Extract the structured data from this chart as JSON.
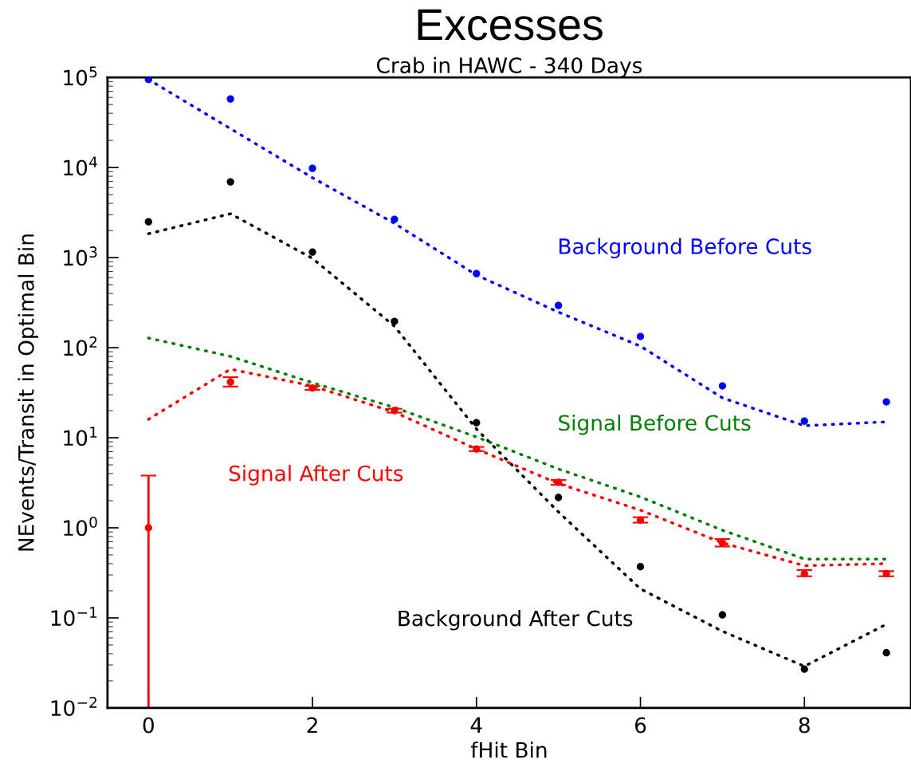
{
  "chart_data": {
    "type": "scatter",
    "title": "Excesses",
    "subtitle": "Crab in HAWC - 340 Days",
    "xlabel": "fHit Bin",
    "ylabel": "NEvents/Transit in Optimal Bin",
    "log": "y",
    "grid": false,
    "legend": false,
    "x": [
      0,
      1,
      2,
      3,
      4,
      5,
      6,
      7,
      8,
      9
    ],
    "xlim": [
      -0.5,
      9.3
    ],
    "xticks": [
      0,
      2,
      4,
      6,
      8
    ],
    "ylim": [
      0.01,
      100000
    ],
    "yticks": [
      {
        "value": 0.01,
        "label": "10$^{−2}$"
      },
      {
        "value": 0.1,
        "label": "10$^{−1}$"
      },
      {
        "value": 1,
        "label": "10$^{0}$"
      },
      {
        "value": 10,
        "label": "10$^{1}$"
      },
      {
        "value": 100,
        "label": "10$^{2}$"
      },
      {
        "value": 1000,
        "label": "10$^{3}$"
      },
      {
        "value": 10000,
        "label": "10$^{4}$"
      },
      {
        "value": 100000,
        "label": "10$^{5}$"
      }
    ],
    "series": [
      {
        "type": "line",
        "line_style": "dotted",
        "marker": "none",
        "color": "#0000ff",
        "values": [
          95000,
          27000,
          7700,
          2400,
          640,
          248,
          104,
          27.7,
          13.6,
          15
        ]
      },
      {
        "type": "line",
        "line_style": "dotted",
        "marker": "none",
        "color": "#000000",
        "values": [
          1840,
          3070,
          980,
          173,
          12.5,
          1.5,
          0.21,
          0.071,
          0.029,
          0.085
        ]
      },
      {
        "type": "line",
        "line_style": "dotted",
        "marker": "none",
        "name": "Signal Before Cuts",
        "color": "#008000",
        "values": [
          128,
          80,
          40.8,
          21.7,
          10.2,
          4.5,
          2.2,
          0.94,
          0.45,
          0.45
        ]
      },
      {
        "type": "line",
        "line_style": "dotted",
        "marker": "none",
        "color": "#ff0000",
        "values": [
          16,
          57.7,
          37.6,
          19.2,
          7.5,
          3.1,
          1.57,
          0.68,
          0.38,
          0.4
        ]
      },
      {
        "marker": "circle",
        "name": "Background Before Cuts",
        "color": "#0000ff",
        "values": [
          95000,
          57700,
          9800,
          2660,
          665,
          294,
          133,
          37.6,
          15.3,
          25
        ]
      },
      {
        "marker": "circle",
        "name": "Background After Cuts",
        "color": "#000000",
        "values": [
          2500,
          6930,
          1150,
          196,
          14.7,
          2.17,
          0.37,
          0.108,
          0.027,
          0.041
        ]
      },
      {
        "marker": "circle",
        "name": "Signal After Cuts",
        "color": "#ff0000",
        "values": [
          1.0,
          41.6,
          35.7,
          20,
          7.5,
          3.2,
          1.22,
          0.68,
          0.31,
          0.31
        ],
        "errors": [
          [
            0.01,
            3.8
          ],
          [
            37,
            47
          ],
          [
            34,
            37.5
          ],
          [
            19,
            21
          ],
          [
            7.1,
            7.9
          ],
          [
            3.0,
            3.4
          ],
          [
            1.14,
            1.31
          ],
          [
            0.62,
            0.75
          ],
          [
            0.29,
            0.34
          ],
          [
            0.29,
            0.33
          ]
        ]
      }
    ]
  }
}
